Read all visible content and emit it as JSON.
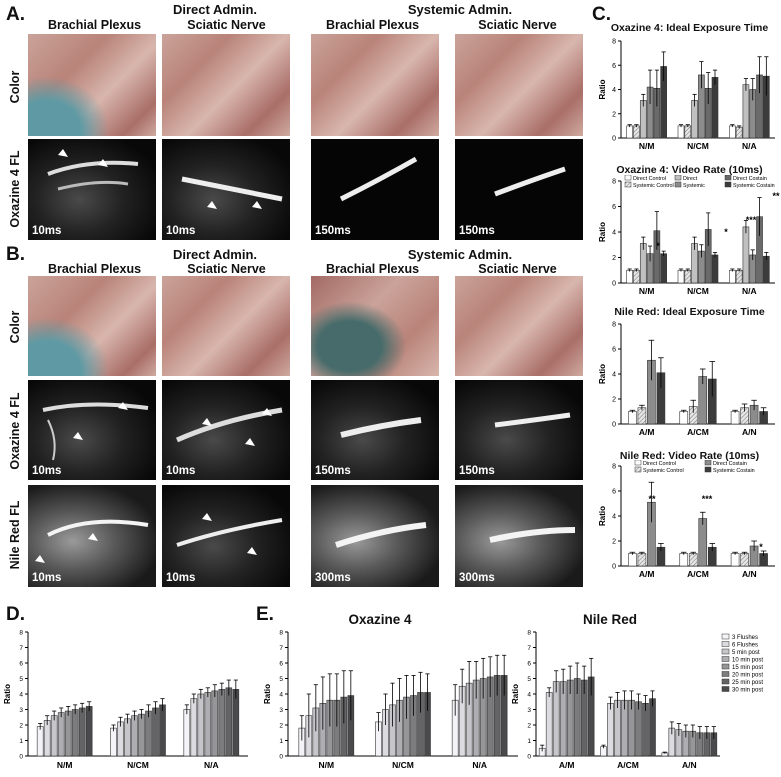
{
  "panels": {
    "A": "A.",
    "B": "B.",
    "C": "C.",
    "D": "D.",
    "E": "E."
  },
  "headers": {
    "direct": "Direct Admin.",
    "systemic": "Systemic Admin.",
    "brachial": "Brachial Plexus",
    "sciatic": "Sciatic Nerve"
  },
  "rows": {
    "color": "Color",
    "oxazine_fl": "Oxazine 4 FL",
    "nilered_fl": "Nile Red FL"
  },
  "times": {
    "t10": "10ms",
    "t150": "150ms",
    "t300": "300ms"
  },
  "legend4": [
    "Direct Control",
    "Direct",
    "Direct Costain",
    "Systemic Control",
    "Systemic",
    "Systemic Costain"
  ],
  "legend8": [
    "3 Flushes",
    "6 Flushes",
    "5 min post",
    "10 min post",
    "15 min post",
    "20 min post",
    "25 min post",
    "30 min post"
  ],
  "e_titles": {
    "ox": "Oxazine 4",
    "nr": "Nile Red"
  },
  "chart_data": [
    {
      "id": "C1",
      "type": "bar",
      "title": "Oxazine 4: Ideal Exposure Time",
      "ylabel": "Ratio",
      "ylim": [
        0,
        8
      ],
      "yticks": [
        0,
        2,
        4,
        6,
        8
      ],
      "categories": [
        "N/M",
        "N/CM",
        "N/A"
      ],
      "series": [
        {
          "name": "Direct Control",
          "values": [
            1.0,
            1.0,
            1.0
          ]
        },
        {
          "name": "Systemic Control",
          "values": [
            1.0,
            1.0,
            0.9
          ]
        },
        {
          "name": "Direct",
          "values": [
            3.1,
            3.1,
            4.4
          ]
        },
        {
          "name": "Systemic",
          "values": [
            4.2,
            5.2,
            4.0
          ]
        },
        {
          "name": "Direct Costain",
          "values": [
            4.1,
            4.1,
            5.2
          ]
        },
        {
          "name": "Systemic Costain",
          "values": [
            5.9,
            5.0,
            5.1
          ]
        }
      ],
      "errors": [
        [
          0.1,
          0.1,
          0.1
        ],
        [
          0.1,
          0.1,
          0.1
        ],
        [
          0.5,
          0.5,
          0.5
        ],
        [
          1.4,
          1.1,
          0.9
        ],
        [
          1.5,
          1.3,
          1.5
        ],
        [
          1.2,
          0.6,
          1.6
        ]
      ]
    },
    {
      "id": "C2",
      "type": "bar",
      "title": "Oxazine 4: Video Rate (10ms)",
      "ylabel": "Ratio",
      "ylim": [
        0,
        8
      ],
      "yticks": [
        0,
        2,
        4,
        6,
        8
      ],
      "categories": [
        "N/M",
        "N/CM",
        "N/A"
      ],
      "series": [
        {
          "name": "Direct Control",
          "values": [
            1.0,
            1.0,
            1.0
          ]
        },
        {
          "name": "Systemic Control",
          "values": [
            1.0,
            1.0,
            1.0
          ]
        },
        {
          "name": "Direct",
          "values": [
            3.1,
            3.1,
            4.4
          ]
        },
        {
          "name": "Systemic",
          "values": [
            2.3,
            2.5,
            2.2
          ]
        },
        {
          "name": "Direct Costain",
          "values": [
            4.1,
            4.2,
            5.2
          ]
        },
        {
          "name": "Systemic Costain",
          "values": [
            2.3,
            2.2,
            2.1
          ]
        }
      ],
      "errors": [
        [
          0.1,
          0.1,
          0.1
        ],
        [
          0.1,
          0.1,
          0.1
        ],
        [
          0.5,
          0.5,
          0.5
        ],
        [
          0.6,
          0.5,
          0.4
        ],
        [
          1.5,
          1.3,
          1.5
        ],
        [
          0.2,
          0.2,
          0.3
        ]
      ],
      "annotations": [
        "*",
        "*",
        "***",
        "**"
      ]
    },
    {
      "id": "C3",
      "type": "bar",
      "title": "Nile Red: Ideal Exposure Time",
      "ylabel": "Ratio",
      "ylim": [
        0,
        8
      ],
      "yticks": [
        0,
        2,
        4,
        6,
        8
      ],
      "categories": [
        "A/M",
        "A/CM",
        "A/N"
      ],
      "series": [
        {
          "name": "Direct Control",
          "values": [
            1.0,
            1.0,
            1.0
          ]
        },
        {
          "name": "Systemic Control",
          "values": [
            1.3,
            1.4,
            1.3
          ]
        },
        {
          "name": "Direct Costain",
          "values": [
            5.1,
            3.8,
            1.5
          ]
        },
        {
          "name": "Systemic Costain",
          "values": [
            4.1,
            3.6,
            1.0
          ]
        }
      ],
      "errors": [
        [
          0.1,
          0.1,
          0.1
        ],
        [
          0.2,
          0.5,
          0.3
        ],
        [
          1.6,
          0.6,
          0.4
        ],
        [
          1.2,
          1.4,
          0.3
        ]
      ]
    },
    {
      "id": "C4",
      "type": "bar",
      "title": "Nile Red: Video Rate (10ms)",
      "ylabel": "Ratio",
      "ylim": [
        0,
        8
      ],
      "yticks": [
        0,
        2,
        4,
        6,
        8
      ],
      "categories": [
        "A/M",
        "A/CM",
        "A/N"
      ],
      "series": [
        {
          "name": "Direct Control",
          "values": [
            1.0,
            1.0,
            1.0
          ]
        },
        {
          "name": "Systemic Control",
          "values": [
            1.0,
            1.0,
            1.0
          ]
        },
        {
          "name": "Direct Costain",
          "values": [
            5.1,
            3.8,
            1.6
          ]
        },
        {
          "name": "Systemic Costain",
          "values": [
            1.5,
            1.5,
            1.0
          ]
        }
      ],
      "errors": [
        [
          0.1,
          0.1,
          0.1
        ],
        [
          0.1,
          0.1,
          0.1
        ],
        [
          1.6,
          0.5,
          0.4
        ],
        [
          0.3,
          0.3,
          0.2
        ]
      ],
      "annotations": [
        "**",
        "***",
        "*"
      ]
    },
    {
      "id": "D",
      "type": "bar",
      "title": "",
      "ylabel": "Ratio",
      "ylim": [
        0,
        8
      ],
      "yticks": [
        0,
        1,
        2,
        3,
        4,
        5,
        6,
        7,
        8
      ],
      "categories": [
        "N/M",
        "N/CM",
        "N/A"
      ],
      "series_names_ref": "legend8",
      "values": [
        [
          1.9,
          2.3,
          2.6,
          2.8,
          2.9,
          3.0,
          3.1,
          3.2
        ],
        [
          1.8,
          2.2,
          2.4,
          2.6,
          2.7,
          2.9,
          3.1,
          3.3
        ],
        [
          3.0,
          3.7,
          4.0,
          4.1,
          4.2,
          4.3,
          4.4,
          4.3
        ]
      ],
      "errors": [
        [
          0.2,
          0.3,
          0.3,
          0.3,
          0.3,
          0.3,
          0.3,
          0.3
        ],
        [
          0.2,
          0.3,
          0.3,
          0.3,
          0.3,
          0.4,
          0.4,
          0.4
        ],
        [
          0.3,
          0.3,
          0.3,
          0.3,
          0.4,
          0.4,
          0.5,
          0.6
        ]
      ]
    },
    {
      "id": "E1",
      "type": "bar",
      "title": "Oxazine 4",
      "ylabel": "Ratio",
      "ylim": [
        0,
        8
      ],
      "yticks": [
        0,
        1,
        2,
        3,
        4,
        5,
        6,
        7,
        8
      ],
      "categories": [
        "N/M",
        "N/CM",
        "N/A"
      ],
      "series_names_ref": "legend8",
      "values": [
        [
          1.8,
          2.6,
          3.1,
          3.4,
          3.6,
          3.6,
          3.8,
          3.9
        ],
        [
          2.2,
          3.0,
          3.3,
          3.6,
          3.8,
          3.9,
          4.1,
          4.1
        ],
        [
          3.6,
          4.5,
          4.7,
          4.9,
          5.0,
          5.1,
          5.2,
          5.2
        ]
      ],
      "errors": [
        [
          0.8,
          1.4,
          1.5,
          1.7,
          1.7,
          1.7,
          1.7,
          1.6
        ],
        [
          0.6,
          1.0,
          1.4,
          1.4,
          1.4,
          1.3,
          1.3,
          1.2
        ],
        [
          1.0,
          1.1,
          1.4,
          1.2,
          1.3,
          1.3,
          1.3,
          1.3
        ]
      ]
    },
    {
      "id": "E2",
      "type": "bar",
      "title": "Nile Red",
      "ylabel": "Ratio",
      "ylim": [
        0,
        8
      ],
      "yticks": [
        0,
        1,
        2,
        3,
        4,
        5,
        6,
        7,
        8
      ],
      "categories": [
        "A/M",
        "A/CM",
        "A/N"
      ],
      "series_names_ref": "legend8",
      "values": [
        [
          0.5,
          4.1,
          4.8,
          4.8,
          4.9,
          5.0,
          4.9,
          5.1
        ],
        [
          0.6,
          3.4,
          3.6,
          3.6,
          3.6,
          3.5,
          3.4,
          3.7
        ],
        [
          0.2,
          1.8,
          1.7,
          1.6,
          1.6,
          1.5,
          1.5,
          1.5
        ]
      ],
      "errors": [
        [
          0.2,
          0.3,
          0.7,
          0.8,
          0.9,
          1.0,
          0.9,
          1.2
        ],
        [
          0.1,
          0.4,
          0.5,
          0.6,
          0.6,
          0.5,
          0.5,
          0.5
        ],
        [
          0.05,
          0.4,
          0.4,
          0.4,
          0.4,
          0.4,
          0.4,
          0.4
        ]
      ]
    }
  ],
  "colors": {
    "s4": [
      "#ffffff",
      "#d4d4d4",
      "#8c8c8c",
      "#3c3c3c"
    ],
    "s6": [
      "#ffffff",
      "#e2e2e2",
      "#c0c0c0",
      "#8c8c8c",
      "#6a6a6a",
      "#3c3c3c"
    ],
    "s8": [
      "#f4f4f8",
      "#dcdce0",
      "#c6c6ca",
      "#aeaeb2",
      "#969698",
      "#7c7c7e",
      "#646466",
      "#4a4a4c"
    ]
  }
}
